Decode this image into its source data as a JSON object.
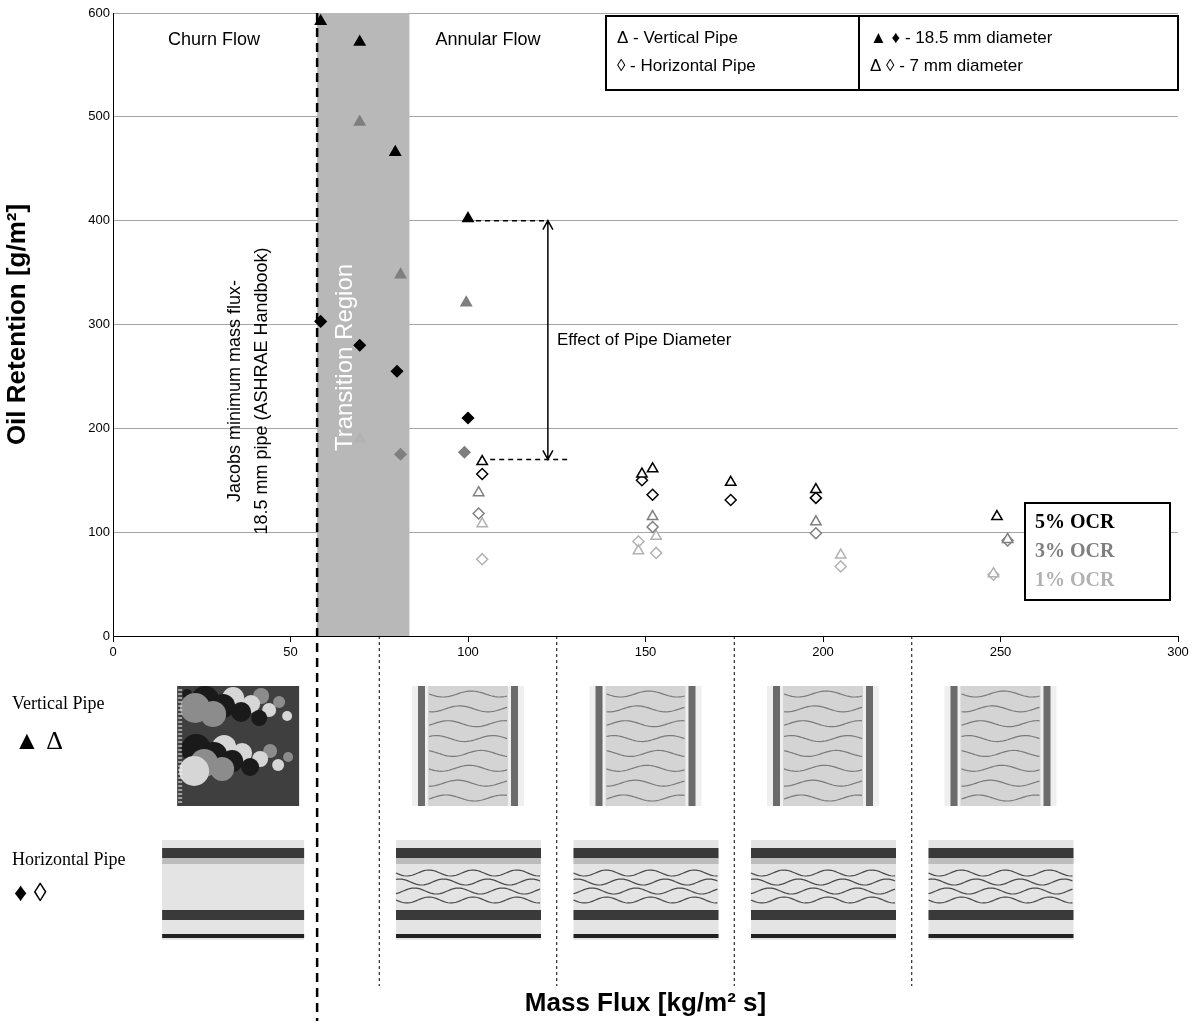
{
  "chart_data": {
    "type": "scatter",
    "x_label": "Mass Flux [kg/m² s]",
    "y_label": "Oil Retention [g/m²]",
    "xlim": [
      0,
      300
    ],
    "xticks": [
      0,
      50,
      100,
      150,
      200,
      250,
      300
    ],
    "ylim": [
      0,
      600
    ],
    "yticks": [
      0,
      100,
      200,
      300,
      400,
      500,
      600
    ],
    "grid": true,
    "series": [
      {
        "color": "#000000",
        "marker": "triangle",
        "x": [
          58.5,
          69.5,
          79.5,
          100
        ],
        "values": [
          592,
          572,
          466,
          402
        ]
      },
      {
        "color": "#7f7f7f",
        "marker": "triangle",
        "x": [
          69.5,
          81,
          99.5
        ],
        "values": [
          495,
          348,
          321
        ]
      },
      {
        "color": "#b2b2b2",
        "marker": "triangle",
        "x": [
          69.5
        ],
        "values": [
          190
        ]
      },
      {
        "color": "#000000",
        "marker": "diamond",
        "x": [
          58.5,
          69.5,
          80,
          100
        ],
        "values": [
          303,
          280,
          255,
          210
        ]
      },
      {
        "color": "#7f7f7f",
        "marker": "diamond",
        "x": [
          81,
          99
        ],
        "values": [
          175,
          177
        ]
      },
      {
        "color": "#000000",
        "marker": "triangle-open",
        "x": [
          104,
          149,
          152,
          174,
          198,
          249
        ],
        "values": [
          168,
          156,
          161,
          148,
          141,
          115
        ]
      },
      {
        "color": "#000000",
        "marker": "diamond-open",
        "x": [
          104,
          149,
          152,
          174,
          198
        ],
        "values": [
          156,
          150,
          136,
          131,
          133
        ]
      },
      {
        "color": "#7f7f7f",
        "marker": "triangle-open",
        "x": [
          103,
          152,
          198,
          252
        ],
        "values": [
          138,
          115,
          110,
          93
        ]
      },
      {
        "color": "#7f7f7f",
        "marker": "diamond-open",
        "x": [
          103,
          152,
          198,
          252
        ],
        "values": [
          118,
          105,
          99,
          92
        ]
      },
      {
        "color": "#b2b2b2",
        "marker": "triangle-open",
        "x": [
          104,
          148,
          153,
          205,
          248
        ],
        "values": [
          108,
          82,
          96,
          78,
          60
        ]
      },
      {
        "color": "#b2b2b2",
        "marker": "diamond-open",
        "x": [
          104,
          148,
          153,
          205,
          248
        ],
        "values": [
          74,
          91,
          80,
          67,
          59
        ]
      }
    ],
    "flow_labels": [
      "Churn Flow",
      "Annular Flow"
    ],
    "transition_region": {
      "label": "Transition Region",
      "x": [
        57.5,
        83.5
      ]
    },
    "reference_line": {
      "x": 57.5,
      "label": [
        "Jacobs minimum mass flux-",
        "18.5 mm pipe (ASHRAE Handbook)"
      ]
    },
    "annotation": {
      "label": "Effect of Pipe Diameter",
      "x": 122.5,
      "from": {
        "x": 100,
        "y": 400
      },
      "to": {
        "x": 104,
        "y": 170
      }
    },
    "key_boxes": [
      [
        "Δ - Vertical Pipe",
        "◊ - Horizontal Pipe"
      ],
      [
        "▲ ♦ - 18.5 mm diameter",
        "Δ ◊ - 7 mm diameter"
      ]
    ],
    "ocr_key": [
      {
        "label": "5% OCR",
        "color": "#000000"
      },
      {
        "label": "3% OCR",
        "color": "#7f7f7f"
      },
      {
        "label": "1% OCR",
        "color": "#b2b2b2"
      }
    ],
    "photo_rows": [
      {
        "label": "Vertical Pipe",
        "symbols": "▲ Δ"
      },
      {
        "label": "Horizontal Pipe",
        "symbols": "♦ ◊"
      }
    ],
    "photo_dividers": [
      75,
      125,
      175,
      225
    ]
  }
}
